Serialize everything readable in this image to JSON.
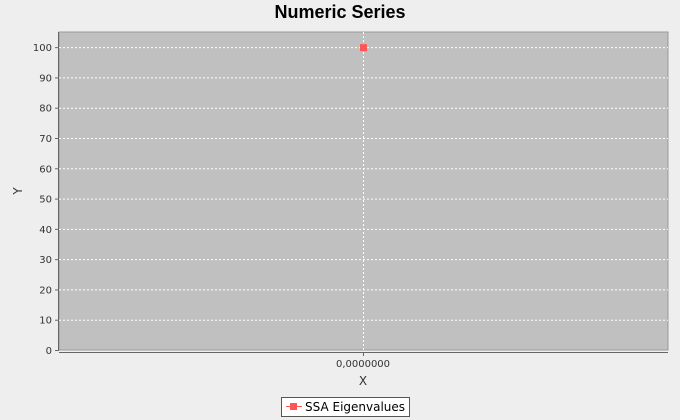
{
  "chart_data": {
    "type": "scatter",
    "title": "Numeric Series",
    "xlabel": "X",
    "ylabel": "Y",
    "x_tick_labels": [
      "0,0000000"
    ],
    "y_ticks": [
      0,
      10,
      20,
      30,
      40,
      50,
      60,
      70,
      80,
      90,
      100
    ],
    "ylim": [
      0,
      105
    ],
    "grid": true,
    "legend": "bottom-center",
    "series": [
      {
        "name": "SSA Eigenvalues",
        "color": "#ff5555",
        "points": [
          {
            "x": 0,
            "y": 100
          }
        ]
      }
    ]
  },
  "colors": {
    "page_background": "#eeeeee",
    "plot_background": "#c0c0c0",
    "grid": "#ffffff",
    "series": "#ff5555"
  }
}
